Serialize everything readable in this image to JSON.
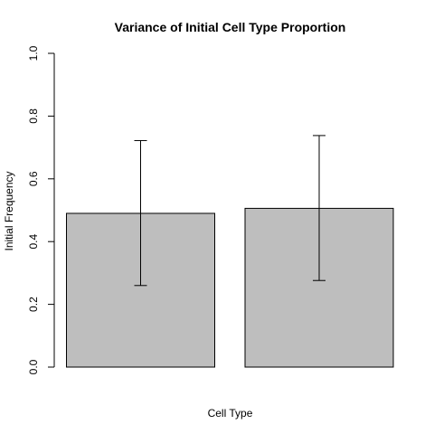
{
  "chart_data": {
    "type": "bar",
    "title": "Variance of Initial Cell Type Proportion",
    "xlabel": "Cell Type",
    "ylabel": "Initial Frequency",
    "ylim": [
      0,
      1
    ],
    "yticks": [
      "0.0",
      "0.2",
      "0.4",
      "0.6",
      "0.8",
      "1.0"
    ],
    "categories": [
      "",
      ""
    ],
    "values": [
      0.49,
      0.506
    ],
    "error_low": [
      0.26,
      0.276
    ],
    "error_high": [
      0.722,
      0.738
    ],
    "bar_color": "#bebebe",
    "grid": false,
    "legend": "none"
  }
}
